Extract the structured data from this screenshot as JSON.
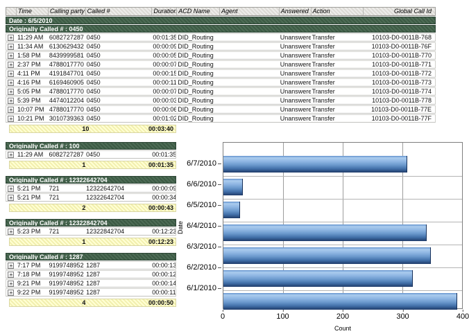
{
  "icons": {
    "expand": "+"
  },
  "report": {
    "columns": {
      "time": "Time",
      "calling": "Calling party #",
      "called": "Called #",
      "duration": "Duration",
      "acd": "ACD Name",
      "agent": "Agent",
      "answered": "Answered",
      "action": "Action",
      "gid": "Global Call Id"
    },
    "date_band": "Date : 6/5/2010",
    "group1": {
      "label": "Originally Called # : 0450",
      "rows": [
        {
          "time": "11:29 AM",
          "calling": "6082727287",
          "called": "0450",
          "duration": "00:01:35",
          "acd": "DID_Routing",
          "agent": "",
          "answered": "Unanswered",
          "action": "Transfer",
          "gid": "10103-D0-0011B-768"
        },
        {
          "time": "11:34 AM",
          "calling": "6130629432",
          "called": "0450",
          "duration": "00:00:09",
          "acd": "DID_Routing",
          "agent": "",
          "answered": "Unanswered",
          "action": "Transfer",
          "gid": "10103-D0-0011B-76F"
        },
        {
          "time": "1:58 PM",
          "calling": "8439999581",
          "called": "0450",
          "duration": "00:00:05",
          "acd": "DID_Routing",
          "agent": "",
          "answered": "Unanswered",
          "action": "Transfer",
          "gid": "10103-D0-0011B-770"
        },
        {
          "time": "2:37 PM",
          "calling": "4788017770",
          "called": "0450",
          "duration": "00:00:07",
          "acd": "DID_Routing",
          "agent": "",
          "answered": "Unanswered",
          "action": "Transfer",
          "gid": "10103-D0-0011B-771"
        },
        {
          "time": "4:11 PM",
          "calling": "4191847701",
          "called": "0450",
          "duration": "00:00:15",
          "acd": "DID_Routing",
          "agent": "",
          "answered": "Unanswered",
          "action": "Transfer",
          "gid": "10103-D0-0011B-772"
        },
        {
          "time": "4:16 PM",
          "calling": "6169460905",
          "called": "0450",
          "duration": "00:00:11",
          "acd": "DID_Routing",
          "agent": "",
          "answered": "Unanswered",
          "action": "Transfer",
          "gid": "10103-D0-0011B-773"
        },
        {
          "time": "5:05 PM",
          "calling": "4788017770",
          "called": "0450",
          "duration": "00:00:07",
          "acd": "DID_Routing",
          "agent": "",
          "answered": "Unanswered",
          "action": "Transfer",
          "gid": "10103-D0-0011B-774"
        },
        {
          "time": "5:39 PM",
          "calling": "4474012204",
          "called": "0450",
          "duration": "00:00:03",
          "acd": "DID_Routing",
          "agent": "",
          "answered": "Unanswered",
          "action": "Transfer",
          "gid": "10103-D0-0011B-778"
        },
        {
          "time": "10:07 PM",
          "calling": "4788017770",
          "called": "0450",
          "duration": "00:00:06",
          "acd": "DID_Routing",
          "agent": "",
          "answered": "Unanswered",
          "action": "Transfer",
          "gid": "10103-D0-0011B-77E"
        },
        {
          "time": "10:21 PM",
          "calling": "3010739363",
          "called": "0450",
          "duration": "00:01:02",
          "acd": "DID_Routing",
          "agent": "",
          "answered": "Unanswered",
          "action": "Transfer",
          "gid": "10103-D0-0011B-77F"
        }
      ],
      "summary": {
        "count": "10",
        "duration": "00:03:40"
      }
    },
    "groups": [
      {
        "label": "Originally Called # : 100",
        "rows": [
          {
            "time": "11:29 AM",
            "calling": "6082727287",
            "called": "0450",
            "duration": "00:01:35"
          }
        ],
        "summary": {
          "count": "1",
          "duration": "00:01:35"
        }
      },
      {
        "label": "Originally Called # : 12322642704",
        "rows": [
          {
            "time": "5:21 PM",
            "calling": "721",
            "called": "12322642704",
            "duration": "00:00:09"
          },
          {
            "time": "5:21 PM",
            "calling": "721",
            "called": "12322642704",
            "duration": "00:00:34"
          }
        ],
        "summary": {
          "count": "2",
          "duration": "00:00:43"
        }
      },
      {
        "label": "Originally Called # : 12322842704",
        "rows": [
          {
            "time": "5:23 PM",
            "calling": "721",
            "called": "12322842704",
            "duration": "00:12:23"
          }
        ],
        "summary": {
          "count": "1",
          "duration": "00:12:23"
        }
      },
      {
        "label": "Originally Called # : 1287",
        "rows": [
          {
            "time": "7:17 PM",
            "calling": "9199748952",
            "called": "1287",
            "duration": "00:00:13"
          },
          {
            "time": "7:18 PM",
            "calling": "9199748952",
            "called": "1287",
            "duration": "00:00:12"
          },
          {
            "time": "9:21 PM",
            "calling": "9199748952",
            "called": "1287",
            "duration": "00:00:14"
          },
          {
            "time": "9:22 PM",
            "calling": "9199748952",
            "called": "1287",
            "duration": "00:00:11"
          }
        ],
        "summary": {
          "count": "4",
          "duration": "00:00:50"
        }
      }
    ]
  },
  "chart_data": {
    "type": "bar",
    "orientation": "horizontal",
    "categories": [
      "6/7/2010",
      "6/6/2010",
      "6/5/2010",
      "6/4/2010",
      "6/3/2010",
      "6/2/2010",
      "6/1/2010"
    ],
    "values": [
      308,
      33,
      28,
      341,
      348,
      318,
      392
    ],
    "xlabel": "Count",
    "ylabel": "Date",
    "xticks": [
      0,
      100,
      200,
      300,
      400
    ],
    "xlim": [
      0,
      400
    ],
    "grid": true,
    "legend": false,
    "bar_color_top": "#abccee",
    "bar_color_bottom": "#1f3b69"
  },
  "colors": {
    "group_band": "#3c5a44",
    "summary_bg": "#ffffd4",
    "header_bg": "#e4e2de",
    "bar_blue": "#6b99cd"
  }
}
